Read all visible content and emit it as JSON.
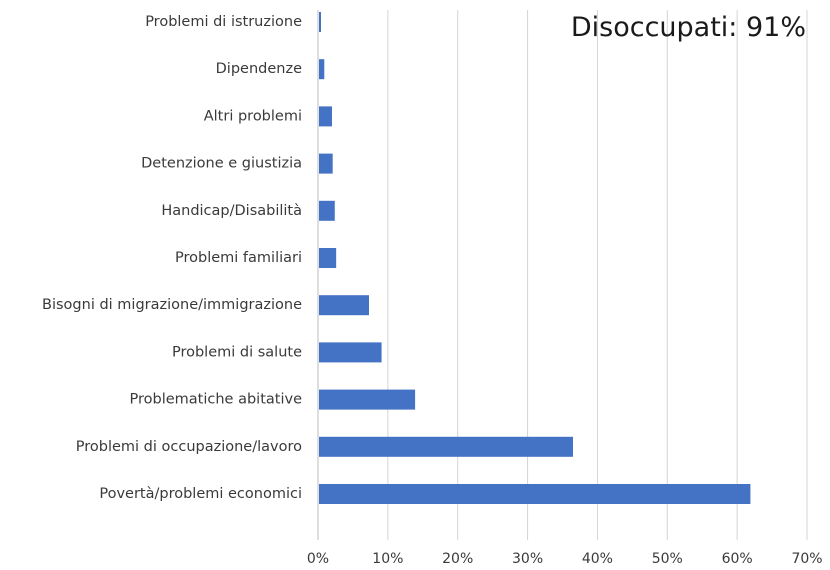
{
  "chart_data": {
    "type": "bar",
    "orientation": "horizontal",
    "annotation": "Disoccupati: 91%",
    "categories": [
      "Problemi di istruzione",
      "Dipendenze",
      "Altri problemi",
      "Detenzione e giustizia",
      "Handicap/Disabilità",
      "Problemi familiari",
      "Bisogni di migrazione/immigrazione",
      "Problemi di salute",
      "Problematiche abitative",
      "Problemi di occupazione/lavoro",
      "Povertà/problemi economici"
    ],
    "values": [
      0.4,
      0.9,
      2.0,
      2.1,
      2.4,
      2.6,
      7.3,
      9.1,
      13.9,
      36.5,
      61.9
    ],
    "xlim": [
      0,
      70
    ],
    "xticks": [
      0,
      10,
      20,
      30,
      40,
      50,
      60,
      70
    ],
    "xtick_labels": [
      "0%",
      "10%",
      "20%",
      "30%",
      "40%",
      "50%",
      "60%",
      "70%"
    ],
    "grid": true,
    "bar_color": "#4472c4"
  }
}
